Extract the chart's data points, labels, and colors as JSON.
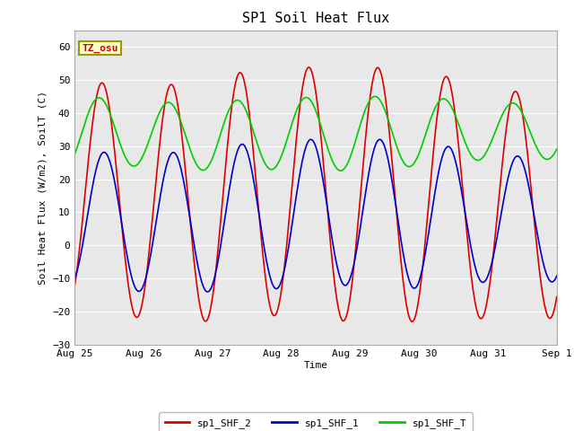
{
  "title": "SP1 Soil Heat Flux",
  "ylabel": "Soil Heat Flux (W/m2), SoilT (C)",
  "xlabel": "Time",
  "tz_label": "TZ_osu",
  "ylim": [
    -30,
    65
  ],
  "yticks": [
    -30,
    -20,
    -10,
    0,
    10,
    20,
    30,
    40,
    50,
    60
  ],
  "fig_bg": "#ffffff",
  "plot_bg": "#e8e8e8",
  "line_colors": {
    "sp1_SHF_2": "#dd0000",
    "sp1_SHF_1": "#0000cc",
    "sp1_SHF_T": "#00cc00"
  },
  "legend_labels": [
    "sp1_SHF_2",
    "sp1_SHF_1",
    "sp1_SHF_T"
  ],
  "xticklabels": [
    "Aug 25",
    "Aug 26",
    "Aug 27",
    "Aug 28",
    "Aug 29",
    "Aug 30",
    "Aug 31",
    "Sep 1"
  ],
  "shf2_peaks": [
    50.5,
    47,
    51,
    54,
    53.5,
    54,
    46.5
  ],
  "shf2_troughs": [
    -19,
    -22,
    -23,
    -21,
    -23,
    -23,
    -22
  ],
  "shf1_peaks": [
    29,
    27,
    29.5,
    32,
    32,
    32,
    27
  ],
  "shf1_troughs": [
    -12,
    -14,
    -14,
    -13,
    -12,
    -13,
    -11
  ],
  "shft_peaks": [
    45.5,
    43,
    43.5,
    44.5,
    45,
    45,
    43
  ],
  "shft_troughs": [
    23.5,
    24,
    22.5,
    23,
    22.5,
    24,
    26
  ],
  "shf2_phase": 0.4,
  "shf1_phase": 0.43,
  "shft_phase": 0.36
}
